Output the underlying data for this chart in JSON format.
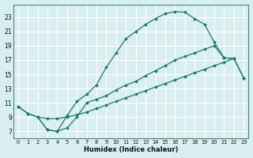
{
  "xlabel": "Humidex (Indice chaleur)",
  "xlim": [
    -0.5,
    23.5
  ],
  "ylim": [
    6.0,
    24.8
  ],
  "xticks": [
    0,
    1,
    2,
    3,
    4,
    5,
    6,
    7,
    8,
    9,
    10,
    11,
    12,
    13,
    14,
    15,
    16,
    17,
    18,
    19,
    20,
    21,
    22,
    23
  ],
  "yticks": [
    7,
    9,
    11,
    13,
    15,
    17,
    19,
    21,
    23
  ],
  "bg_color": "#d8eef0",
  "grid_color": "#c8dfe0",
  "line_color": "#1a7a6e",
  "curve1_x": [
    0,
    1,
    2,
    3,
    4,
    5,
    6,
    7,
    8,
    9,
    10,
    11,
    12,
    13,
    14,
    15,
    16,
    17,
    18,
    19,
    20,
    21,
    22
  ],
  "curve1_y": [
    10.5,
    9.5,
    9.0,
    7.2,
    7.0,
    9.2,
    11.2,
    12.2,
    13.5,
    16.0,
    18.0,
    20.0,
    21.0,
    22.0,
    22.8,
    23.5,
    23.8,
    23.7,
    22.8,
    22.0,
    19.5,
    17.3,
    17.2
  ],
  "curve2_x": [
    2,
    3,
    4,
    5,
    6,
    7,
    8,
    9,
    10,
    11,
    12,
    13,
    14,
    15,
    16,
    17,
    18,
    19,
    20,
    21,
    22,
    23
  ],
  "curve2_y": [
    9.0,
    7.2,
    7.0,
    7.5,
    9.0,
    11.0,
    11.5,
    12.0,
    12.8,
    13.5,
    14.0,
    14.8,
    15.5,
    16.2,
    17.0,
    17.5,
    18.0,
    18.5,
    19.0,
    17.3,
    17.2,
    14.5
  ],
  "curve3_x": [
    0,
    1,
    2,
    3,
    4,
    5,
    6,
    7,
    8,
    9,
    10,
    11,
    12,
    13,
    14,
    15,
    16,
    17,
    18,
    19,
    20,
    21,
    22,
    23
  ],
  "curve3_y": [
    10.5,
    9.5,
    9.0,
    8.8,
    8.8,
    9.0,
    9.3,
    9.7,
    10.2,
    10.7,
    11.2,
    11.7,
    12.2,
    12.7,
    13.2,
    13.7,
    14.2,
    14.7,
    15.2,
    15.7,
    16.2,
    16.7,
    17.2,
    14.5
  ]
}
